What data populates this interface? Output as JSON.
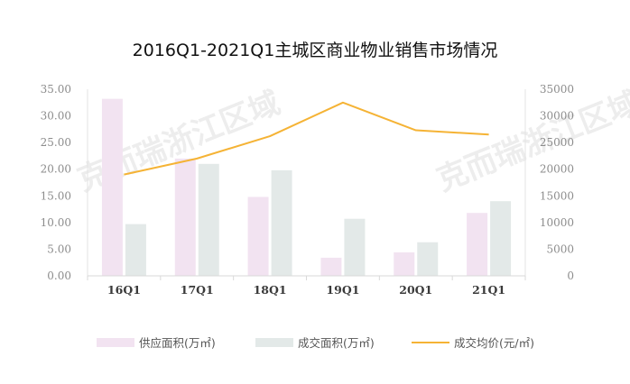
{
  "watermark": "克而瑞浙江区域",
  "chart_data": {
    "type": "bar",
    "title": "2016Q1-2021Q1主城区商业物业销售市场情况",
    "categories": [
      "16Q1",
      "17Q1",
      "18Q1",
      "19Q1",
      "20Q1",
      "21Q1"
    ],
    "series": [
      {
        "name": "供应面积(万㎡)",
        "type": "bar",
        "axis": "left",
        "color": "#f2e3f1",
        "values": [
          33.2,
          22.0,
          14.8,
          3.4,
          4.4,
          11.8
        ]
      },
      {
        "name": "成交面积(万㎡)",
        "type": "bar",
        "axis": "left",
        "color": "#e3e9e8",
        "values": [
          9.7,
          21.0,
          19.8,
          10.7,
          6.3,
          14.0
        ]
      },
      {
        "name": "成交均价(元/㎡)",
        "type": "line",
        "axis": "right",
        "color": "#f5b335",
        "values": [
          19000,
          22000,
          26200,
          32500,
          27300,
          26500
        ]
      }
    ],
    "y_left": {
      "min": 0,
      "max": 35,
      "step": 5,
      "tick_labels": [
        "0.00",
        "5.00",
        "10.00",
        "15.00",
        "20.00",
        "25.00",
        "30.00",
        "35.00"
      ]
    },
    "y_right": {
      "min": 0,
      "max": 35000,
      "step": 5000,
      "tick_labels": [
        "0",
        "5000",
        "10000",
        "15000",
        "20000",
        "25000",
        "30000",
        "35000"
      ]
    },
    "legend_position": "bottom"
  }
}
